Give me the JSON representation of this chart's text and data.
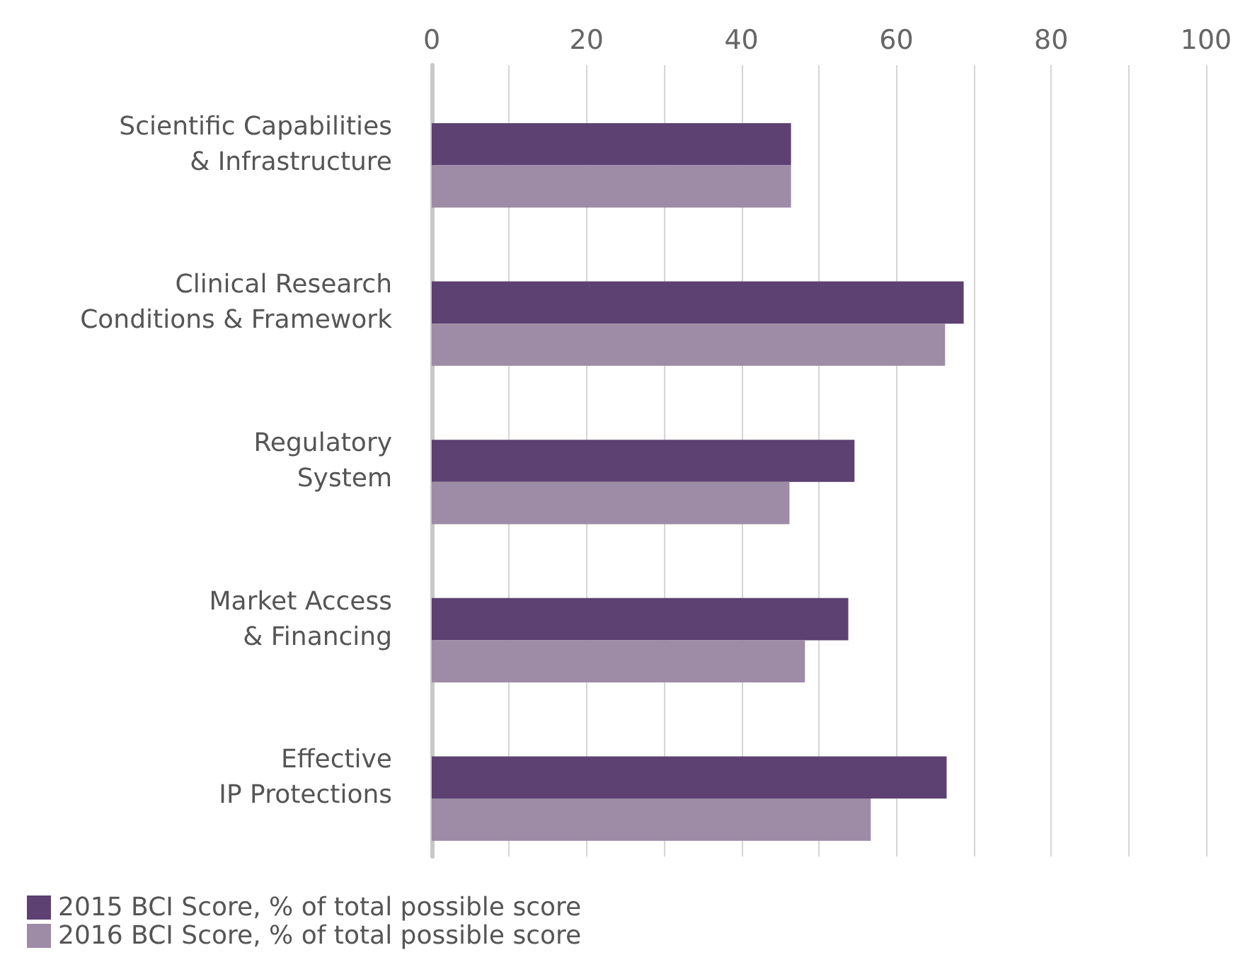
{
  "chart_data": {
    "type": "bar",
    "orientation": "horizontal",
    "categories": [
      "Scientific Capabilities\n& Infrastructure",
      "Clinical Research\nConditions & Framework",
      "Regulatory\nSystem",
      "Market Access\n& Financing",
      "Effective\nIP Protections"
    ],
    "series": [
      {
        "name": "2015 BCI Score, % of total possible score",
        "color": "#5c4172",
        "values": [
          46.4,
          68.7,
          54.6,
          53.8,
          66.5
        ]
      },
      {
        "name": "2016 BCI Score, % of total possible score",
        "color": "#9e8ba6",
        "values": [
          46.4,
          66.3,
          46.2,
          48.2,
          56.7
        ]
      }
    ],
    "xlim": [
      0,
      100
    ],
    "xticks": [
      0,
      {
        "value": 10,
        "label": null
      },
      20,
      {
        "value": 30,
        "label": null
      },
      40,
      {
        "value": 50,
        "label": null
      },
      60,
      {
        "value": 70,
        "label": null
      },
      80,
      {
        "value": 90,
        "label": null
      },
      100
    ],
    "grid": "x",
    "legend": "bottom left"
  }
}
